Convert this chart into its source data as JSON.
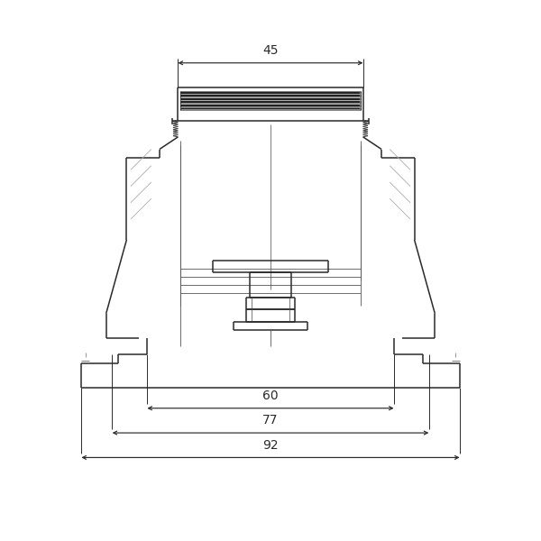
{
  "bg_color": "#ffffff",
  "line_color": "#2a2a2a",
  "dim_color": "#2a2a2a",
  "lw_main": 1.1,
  "lw_thin": 0.6,
  "lw_detail": 0.55,
  "dim_45": "45",
  "dim_60": "60",
  "dim_77": "77",
  "dim_92": "92",
  "fig_width": 6.0,
  "fig_height": 6.0,
  "dpi": 100,
  "xlim": [
    -52,
    52
  ],
  "ylim": [
    -63,
    68
  ]
}
